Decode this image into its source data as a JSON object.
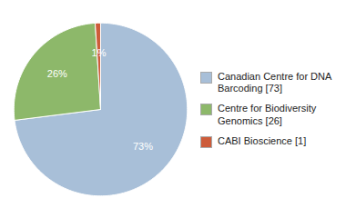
{
  "chart_data": {
    "type": "pie",
    "categories": [
      "Canadian Centre for DNA\nBarcoding [73]",
      "Centre for Biodiversity\nGenomics [26]",
      "CABI Bioscience [1]"
    ],
    "values": [
      73,
      26,
      1
    ],
    "value_labels": [
      "73%",
      "26%",
      "1%"
    ],
    "colors": [
      "#a8bfd8",
      "#8db86a",
      "#cd5c3a"
    ],
    "data_labels": true,
    "legend": "right"
  }
}
